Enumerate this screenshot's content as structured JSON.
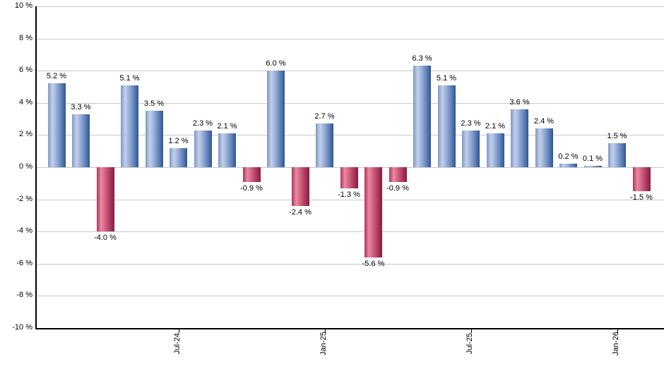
{
  "chart_data": {
    "type": "bar",
    "title": "",
    "values": [
      5.2,
      3.3,
      -4.0,
      5.1,
      3.5,
      1.2,
      2.3,
      2.1,
      -0.9,
      6.0,
      -2.4,
      2.7,
      -1.3,
      -5.6,
      -0.9,
      6.3,
      5.1,
      2.3,
      2.1,
      3.6,
      2.4,
      0.2,
      0.1,
      1.5,
      -1.5
    ],
    "bar_labels": [
      "5.2 %",
      "3.3 %",
      "-4.0 %",
      "5.1 %",
      "3.5 %",
      "1.2 %",
      "2.3 %",
      "2.1 %",
      "-0.9 %",
      "6.0 %",
      "-2.4 %",
      "2.7 %",
      "-1.3 %",
      "-5.6 %",
      "-0.9 %",
      "6.3 %",
      "5.1 %",
      "2.3 %",
      "2.1 %",
      "3.6 %",
      "2.4 %",
      "0.2 %",
      "0.1 %",
      "1.5 %",
      "-1.5 %"
    ],
    "x_tick_labels": [
      {
        "label": "Jul-24",
        "bar_index": 5
      },
      {
        "label": "Jan-25",
        "bar_index": 11
      },
      {
        "label": "Jul-25",
        "bar_index": 17
      },
      {
        "label": "Jan-26",
        "bar_index": 23
      }
    ],
    "y_tick_labels": [
      "10 %",
      "8 %",
      "6 %",
      "4 %",
      "2 %",
      "0 %",
      "-2 %",
      "-4 %",
      "-6 %",
      "-8 %",
      "-10 %"
    ],
    "ylim": [
      -10,
      10
    ],
    "y_gridline_step": 2,
    "grid": true,
    "legend": false,
    "xlabel": "",
    "ylabel": "",
    "colors": {
      "positive_bar": "#7e97c6",
      "positive_bar_light": "#c2d0ea",
      "positive_bar_dark": "#2f5592",
      "negative_bar": "#c0436a",
      "negative_bar_light": "#ea8aa2",
      "negative_bar_dark": "#871d3e",
      "gridline": "#c9c9c9",
      "axis": "#000000",
      "label_text": "#000000",
      "background": "#ffffff"
    }
  }
}
